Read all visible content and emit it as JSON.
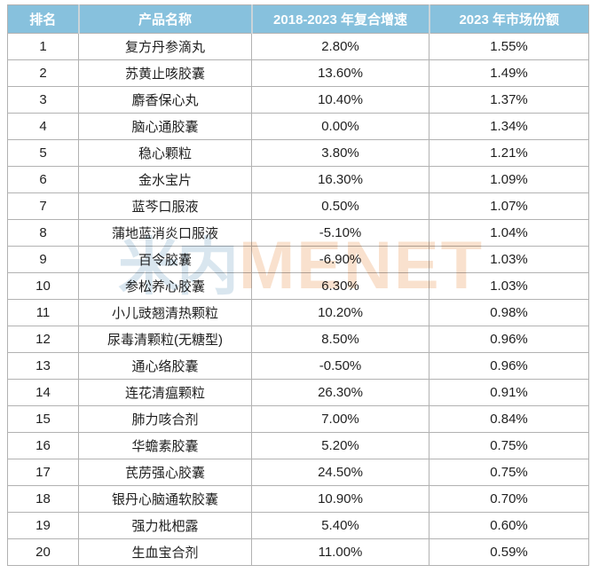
{
  "chart_data": {
    "type": "table",
    "columns": [
      "排名",
      "产品名称",
      "2018-2023 年复合增速",
      "2023 年市场份额"
    ],
    "rows": [
      [
        "1",
        "复方丹参滴丸",
        "2.80%",
        "1.55%"
      ],
      [
        "2",
        "苏黄止咳胶囊",
        "13.60%",
        "1.49%"
      ],
      [
        "3",
        "麝香保心丸",
        "10.40%",
        "1.37%"
      ],
      [
        "4",
        "脑心通胶囊",
        "0.00%",
        "1.34%"
      ],
      [
        "5",
        "稳心颗粒",
        "3.80%",
        "1.21%"
      ],
      [
        "6",
        "金水宝片",
        "16.30%",
        "1.09%"
      ],
      [
        "7",
        "蓝芩口服液",
        "0.50%",
        "1.07%"
      ],
      [
        "8",
        "蒲地蓝消炎口服液",
        "-5.10%",
        "1.04%"
      ],
      [
        "9",
        "百令胶囊",
        "-6.90%",
        "1.03%"
      ],
      [
        "10",
        "参松养心胶囊",
        "6.30%",
        "1.03%"
      ],
      [
        "11",
        "小儿豉翘清热颗粒",
        "10.20%",
        "0.98%"
      ],
      [
        "12",
        "尿毒清颗粒(无糖型)",
        "8.50%",
        "0.96%"
      ],
      [
        "13",
        "通心络胶囊",
        "-0.50%",
        "0.96%"
      ],
      [
        "14",
        "连花清瘟颗粒",
        "26.30%",
        "0.91%"
      ],
      [
        "15",
        "肺力咳合剂",
        "7.00%",
        "0.84%"
      ],
      [
        "16",
        "华蟾素胶囊",
        "5.20%",
        "0.75%"
      ],
      [
        "17",
        "芪苈强心胶囊",
        "24.50%",
        "0.75%"
      ],
      [
        "18",
        "银丹心脑通软胶囊",
        "10.90%",
        "0.70%"
      ],
      [
        "19",
        "强力枇杷露",
        "5.40%",
        "0.60%"
      ],
      [
        "20",
        "生血宝合剂",
        "11.00%",
        "0.59%"
      ]
    ]
  },
  "watermark": {
    "cjk": "米内",
    "latin": "MENET"
  },
  "colors": {
    "header_bg": "#87c1dd",
    "header_text": "#ffffff",
    "border": "#b2b2b2",
    "body_text": "#1f1f1f",
    "watermark_blue": "#d9e6ef",
    "watermark_orange": "#f9e1ce"
  }
}
